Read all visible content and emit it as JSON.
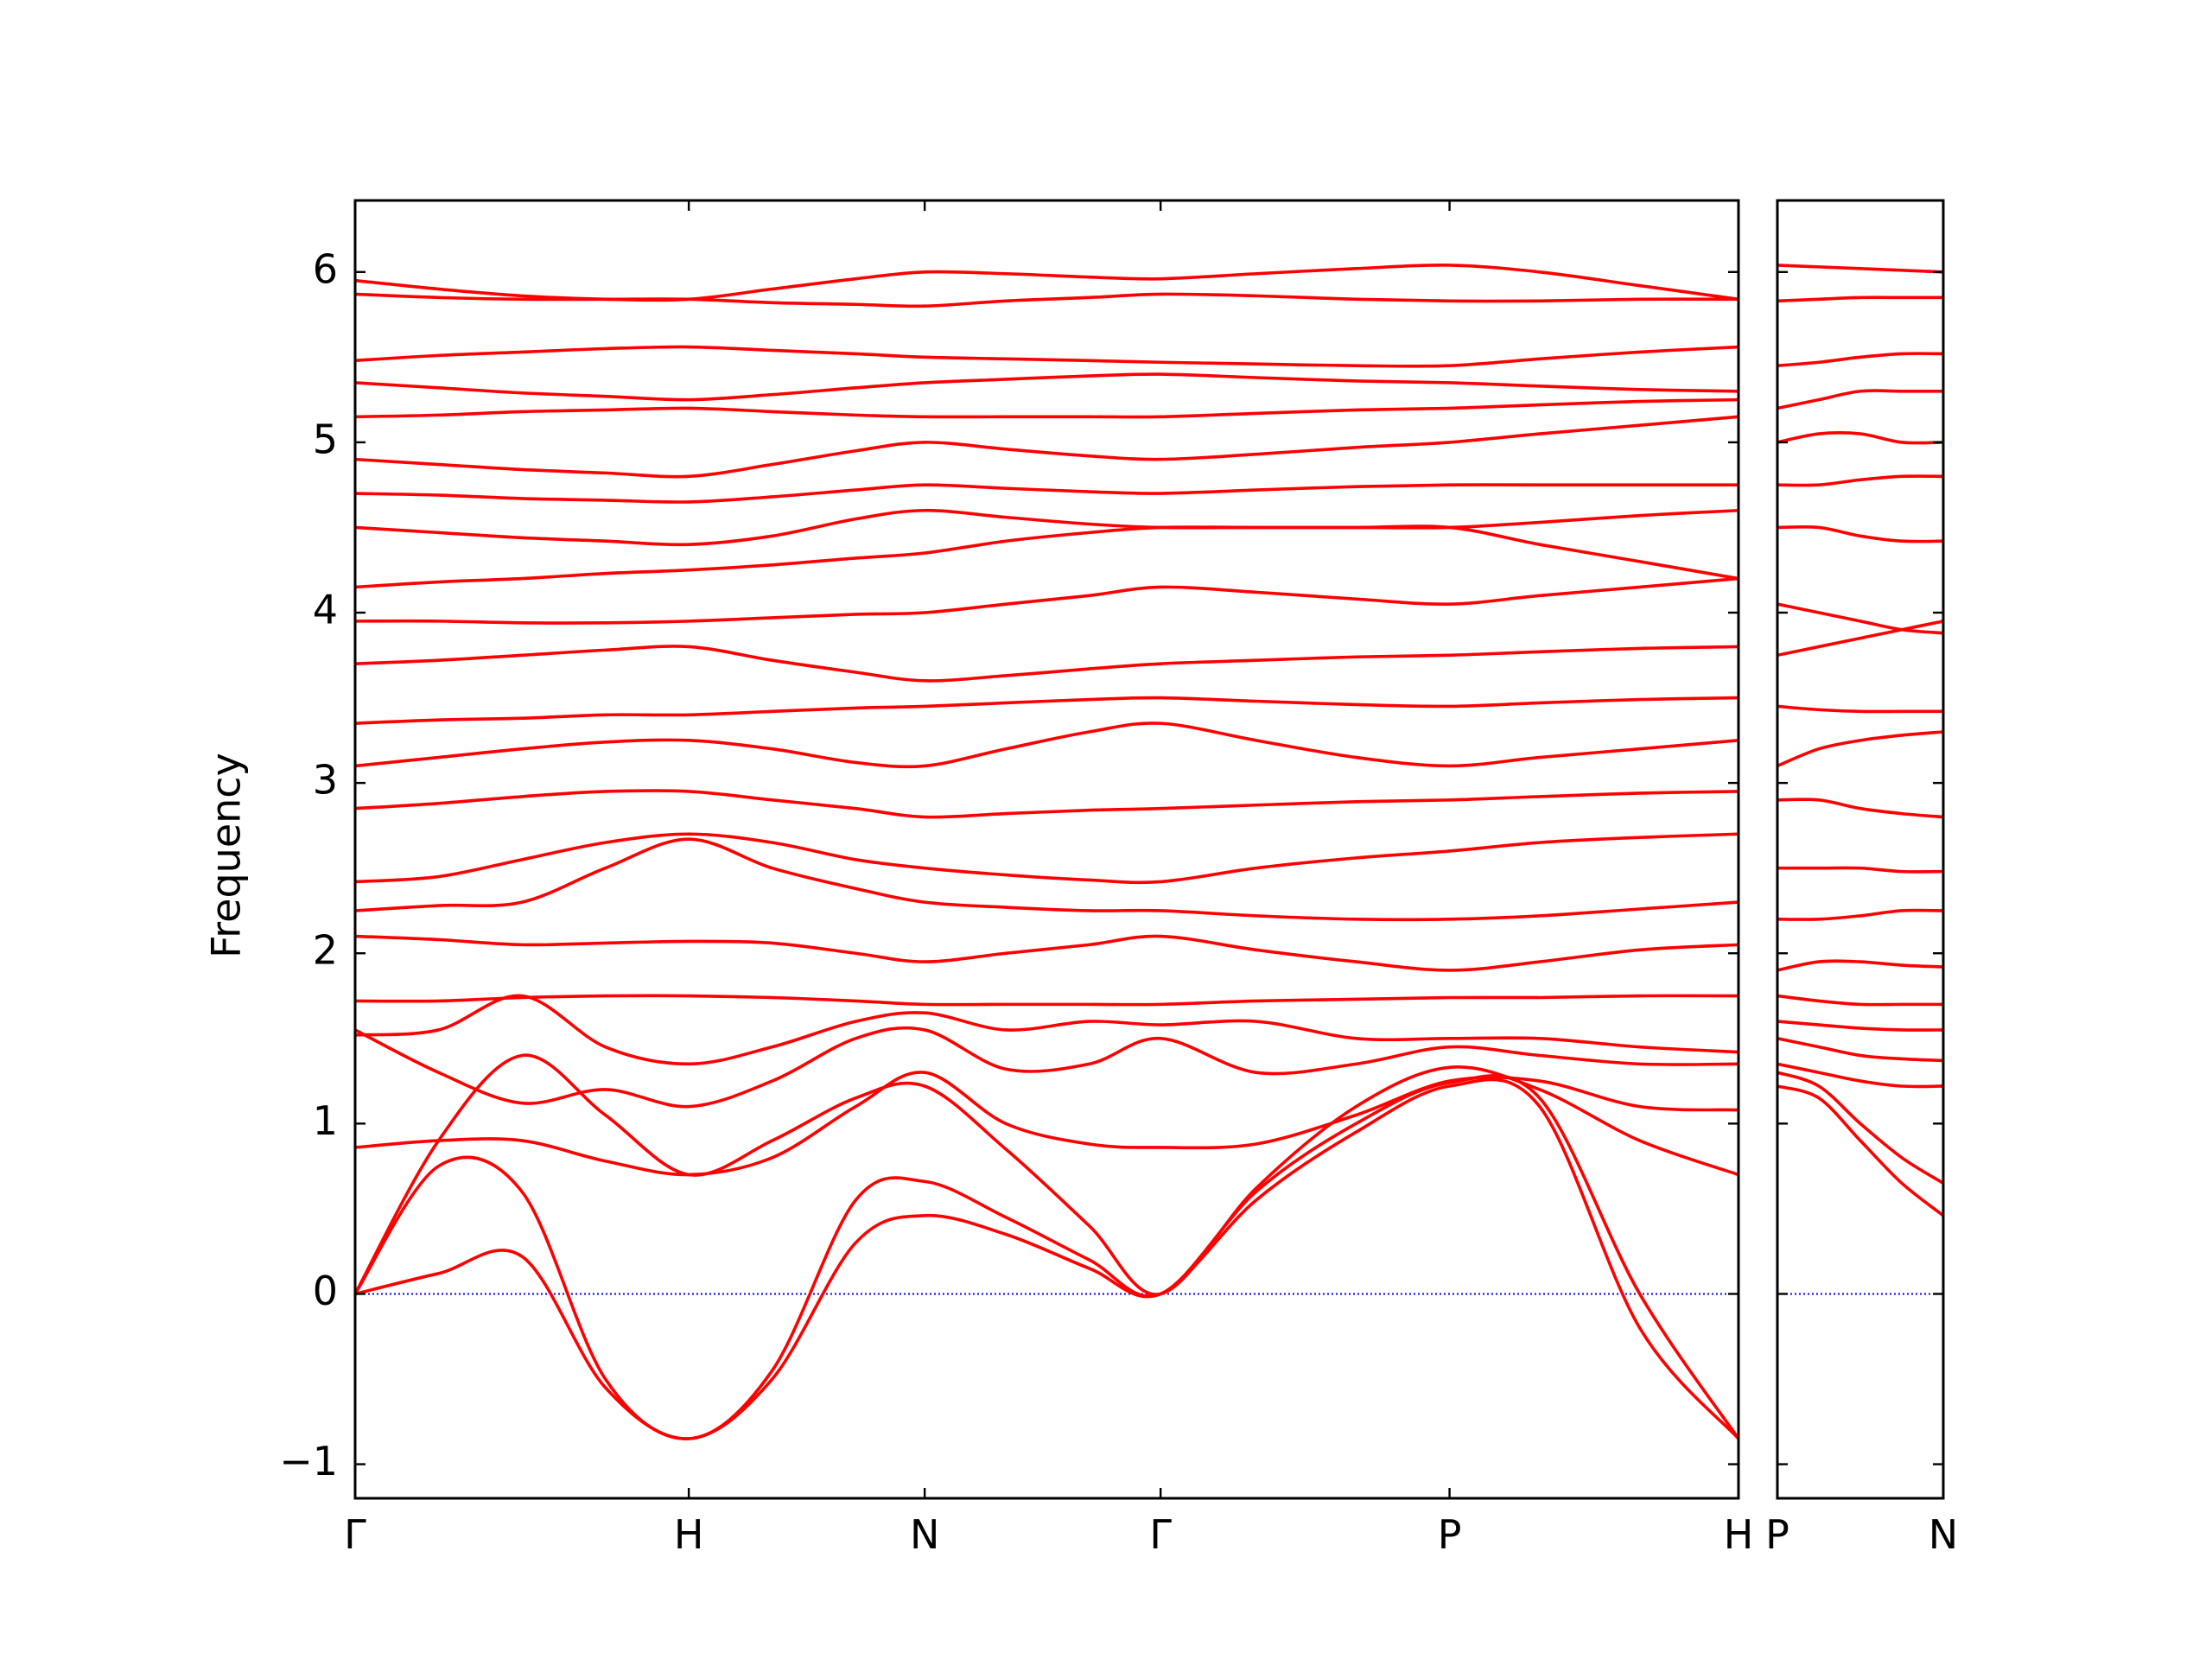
{
  "chart_data": [
    {
      "type": "line",
      "ylabel": "Frequency",
      "color": "#ff0000",
      "zero_line_color": "#0000ff",
      "x": [
        0,
        0.25,
        0.5,
        0.75,
        1,
        1.25,
        1.5,
        1.707,
        1.95,
        2.2,
        2.414,
        2.7,
        3.0,
        3.28,
        3.55,
        3.85,
        4.146
      ],
      "xlim": [
        0,
        4.146
      ],
      "xticks": [
        {
          "value": 0,
          "label": "Γ"
        },
        {
          "value": 1,
          "label": "H"
        },
        {
          "value": 1.707,
          "label": "N"
        },
        {
          "value": 2.414,
          "label": "Γ"
        },
        {
          "value": 3.28,
          "label": "P"
        },
        {
          "value": 4.146,
          "label": "H"
        }
      ],
      "ylim": [
        -1.2,
        6.42
      ],
      "yticks": [
        {
          "value": -1,
          "label": "−1"
        },
        0,
        1,
        2,
        3,
        4,
        5,
        6
      ],
      "series": [
        {
          "values": [
            0,
            0.12,
            0.22,
            -0.55,
            -0.85,
            -0.5,
            0.3,
            0.46,
            0.35,
            0.15,
            0,
            0.55,
            0.95,
            1.22,
            1.1,
            -0.2,
            -0.85
          ]
        },
        {
          "values": [
            0,
            0.75,
            0.6,
            -0.5,
            -0.85,
            -0.45,
            0.55,
            0.66,
            0.45,
            0.2,
            0,
            0.6,
            1.0,
            1.24,
            1.15,
            0.0,
            -0.85
          ]
        },
        {
          "values": [
            0,
            0.9,
            1.4,
            1.05,
            0.7,
            0.9,
            1.15,
            1.22,
            0.85,
            0.4,
            0,
            0.62,
            1.1,
            1.33,
            1.2,
            0.9,
            0.7
          ]
        },
        {
          "values": [
            0.86,
            0.9,
            0.9,
            0.78,
            0.7,
            0.8,
            1.1,
            1.3,
            1.0,
            0.88,
            0.86,
            0.88,
            1.05,
            1.25,
            1.25,
            1.1,
            1.08
          ]
        },
        {
          "values": [
            1.55,
            1.3,
            1.12,
            1.2,
            1.1,
            1.25,
            1.5,
            1.55,
            1.32,
            1.35,
            1.5,
            1.3,
            1.35,
            1.45,
            1.4,
            1.35,
            1.35
          ]
        },
        {
          "values": [
            1.52,
            1.55,
            1.75,
            1.45,
            1.35,
            1.45,
            1.6,
            1.65,
            1.55,
            1.6,
            1.58,
            1.6,
            1.5,
            1.5,
            1.5,
            1.45,
            1.42
          ]
        },
        {
          "values": [
            1.72,
            1.72,
            1.74,
            1.75,
            1.75,
            1.74,
            1.72,
            1.7,
            1.7,
            1.7,
            1.7,
            1.72,
            1.73,
            1.74,
            1.74,
            1.75,
            1.75
          ]
        },
        {
          "values": [
            2.1,
            2.08,
            2.05,
            2.06,
            2.07,
            2.06,
            2.0,
            1.95,
            2.0,
            2.05,
            2.1,
            2.02,
            1.95,
            1.9,
            1.95,
            2.02,
            2.05
          ]
        },
        {
          "values": [
            2.25,
            2.28,
            2.3,
            2.5,
            2.67,
            2.5,
            2.38,
            2.3,
            2.27,
            2.25,
            2.25,
            2.22,
            2.2,
            2.2,
            2.22,
            2.26,
            2.3
          ]
        },
        {
          "values": [
            2.42,
            2.45,
            2.55,
            2.65,
            2.7,
            2.65,
            2.55,
            2.5,
            2.46,
            2.43,
            2.42,
            2.5,
            2.56,
            2.6,
            2.65,
            2.68,
            2.7
          ]
        },
        {
          "values": [
            2.85,
            2.88,
            2.92,
            2.95,
            2.95,
            2.9,
            2.85,
            2.8,
            2.82,
            2.84,
            2.85,
            2.87,
            2.89,
            2.9,
            2.92,
            2.94,
            2.95
          ]
        },
        {
          "values": [
            3.1,
            3.15,
            3.2,
            3.24,
            3.25,
            3.2,
            3.12,
            3.1,
            3.2,
            3.3,
            3.35,
            3.25,
            3.15,
            3.1,
            3.15,
            3.2,
            3.25
          ]
        },
        {
          "values": [
            3.35,
            3.37,
            3.38,
            3.4,
            3.4,
            3.42,
            3.44,
            3.45,
            3.47,
            3.49,
            3.5,
            3.48,
            3.46,
            3.45,
            3.47,
            3.49,
            3.5
          ]
        },
        {
          "values": [
            3.7,
            3.72,
            3.75,
            3.78,
            3.8,
            3.72,
            3.65,
            3.6,
            3.63,
            3.67,
            3.7,
            3.72,
            3.74,
            3.75,
            3.77,
            3.79,
            3.8
          ]
        },
        {
          "values": [
            3.95,
            3.95,
            3.94,
            3.94,
            3.95,
            3.97,
            3.99,
            4.0,
            4.05,
            4.1,
            4.15,
            4.12,
            4.08,
            4.05,
            4.1,
            4.15,
            4.2
          ]
        },
        {
          "values": [
            4.15,
            4.18,
            4.2,
            4.23,
            4.25,
            4.28,
            4.32,
            4.35,
            4.42,
            4.47,
            4.5,
            4.5,
            4.5,
            4.5,
            4.4,
            4.3,
            4.2
          ]
        },
        {
          "values": [
            4.5,
            4.47,
            4.44,
            4.42,
            4.4,
            4.45,
            4.55,
            4.6,
            4.56,
            4.52,
            4.5,
            4.5,
            4.5,
            4.5,
            4.53,
            4.57,
            4.6
          ]
        },
        {
          "values": [
            4.7,
            4.69,
            4.67,
            4.66,
            4.65,
            4.68,
            4.72,
            4.75,
            4.73,
            4.71,
            4.7,
            4.72,
            4.74,
            4.75,
            4.75,
            4.75,
            4.75
          ]
        },
        {
          "values": [
            4.9,
            4.87,
            4.84,
            4.82,
            4.8,
            4.87,
            4.95,
            5.0,
            4.96,
            4.92,
            4.9,
            4.93,
            4.97,
            5.0,
            5.05,
            5.1,
            5.15
          ]
        },
        {
          "values": [
            5.15,
            5.16,
            5.18,
            5.19,
            5.2,
            5.18,
            5.16,
            5.15,
            5.15,
            5.15,
            5.15,
            5.17,
            5.19,
            5.2,
            5.22,
            5.24,
            5.25
          ]
        },
        {
          "values": [
            5.35,
            5.32,
            5.29,
            5.27,
            5.25,
            5.28,
            5.32,
            5.35,
            5.37,
            5.39,
            5.4,
            5.38,
            5.36,
            5.35,
            5.33,
            5.31,
            5.3
          ]
        },
        {
          "values": [
            5.48,
            5.51,
            5.53,
            5.55,
            5.56,
            5.54,
            5.52,
            5.5,
            5.49,
            5.48,
            5.47,
            5.46,
            5.45,
            5.45,
            5.49,
            5.53,
            5.56
          ]
        },
        {
          "values": [
            5.87,
            5.85,
            5.84,
            5.84,
            5.84,
            5.82,
            5.81,
            5.8,
            5.83,
            5.85,
            5.87,
            5.86,
            5.84,
            5.83,
            5.83,
            5.84,
            5.84
          ]
        },
        {
          "values": [
            5.95,
            5.9,
            5.86,
            5.84,
            5.84,
            5.9,
            5.96,
            6.0,
            5.99,
            5.97,
            5.96,
            5.99,
            6.02,
            6.04,
            6.0,
            5.92,
            5.84
          ]
        }
      ]
    },
    {
      "type": "line",
      "color": "#ff0000",
      "zero_line_color": "#0000ff",
      "x": [
        0,
        0.125,
        0.25,
        0.375,
        0.5
      ],
      "xlim": [
        0,
        0.5
      ],
      "xticks": [
        {
          "value": 0,
          "label": "P"
        },
        {
          "value": 0.5,
          "label": "N"
        }
      ],
      "ylim": [
        -1.2,
        6.42
      ],
      "series": [
        {
          "values": [
            1.22,
            1.15,
            0.9,
            0.65,
            0.46
          ]
        },
        {
          "values": [
            1.3,
            1.22,
            1.0,
            0.8,
            0.65
          ]
        },
        {
          "values": [
            1.35,
            1.3,
            1.25,
            1.22,
            1.22
          ]
        },
        {
          "values": [
            1.5,
            1.45,
            1.4,
            1.38,
            1.37
          ]
        },
        {
          "values": [
            1.6,
            1.58,
            1.56,
            1.55,
            1.55
          ]
        },
        {
          "values": [
            1.75,
            1.72,
            1.7,
            1.7,
            1.7
          ]
        },
        {
          "values": [
            1.9,
            1.95,
            1.95,
            1.93,
            1.92
          ]
        },
        {
          "values": [
            2.2,
            2.2,
            2.22,
            2.25,
            2.25
          ]
        },
        {
          "values": [
            2.5,
            2.5,
            2.5,
            2.48,
            2.48
          ]
        },
        {
          "values": [
            2.9,
            2.9,
            2.85,
            2.82,
            2.8
          ]
        },
        {
          "values": [
            3.1,
            3.2,
            3.25,
            3.28,
            3.3
          ]
        },
        {
          "values": [
            3.45,
            3.43,
            3.42,
            3.42,
            3.42
          ]
        },
        {
          "values": [
            3.75,
            3.8,
            3.85,
            3.9,
            3.95
          ]
        },
        {
          "values": [
            4.05,
            4.0,
            3.95,
            3.9,
            3.88
          ]
        },
        {
          "values": [
            4.5,
            4.5,
            4.45,
            4.42,
            4.42
          ]
        },
        {
          "values": [
            4.75,
            4.75,
            4.78,
            4.8,
            4.8
          ]
        },
        {
          "values": [
            5.0,
            5.05,
            5.05,
            5.0,
            5.0
          ]
        },
        {
          "values": [
            5.2,
            5.25,
            5.3,
            5.3,
            5.3
          ]
        },
        {
          "values": [
            5.45,
            5.47,
            5.5,
            5.52,
            5.52
          ]
        },
        {
          "values": [
            5.83,
            5.84,
            5.85,
            5.85,
            5.85
          ]
        },
        {
          "values": [
            6.04,
            6.03,
            6.02,
            6.01,
            6.0
          ]
        }
      ]
    }
  ]
}
